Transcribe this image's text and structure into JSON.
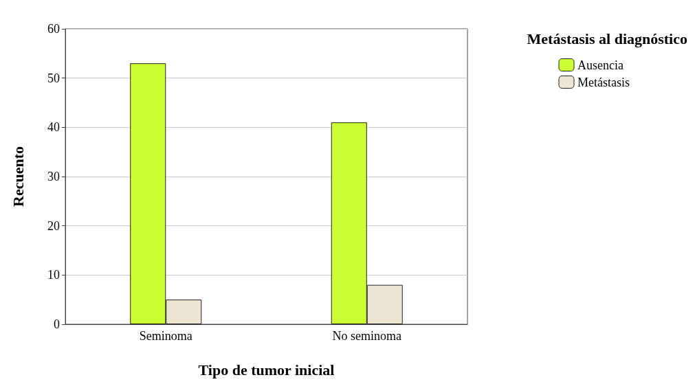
{
  "chart_data": {
    "type": "bar",
    "xlabel": "Tipo de tumor inicial",
    "ylabel": "Recuento",
    "legend_title": "Metástasis al diagnóstico",
    "categories": [
      "Seminoma",
      "No seminoma"
    ],
    "series": [
      {
        "name": "Ausencia",
        "color": "#ccff33",
        "values": [
          53,
          41
        ]
      },
      {
        "name": "Metástasis",
        "color": "#ede5d1",
        "values": [
          5,
          8
        ]
      }
    ],
    "ylim": [
      0,
      60
    ],
    "yticks": [
      0,
      10,
      20,
      30,
      40,
      50,
      60
    ],
    "grid": "y",
    "legend": "top right"
  }
}
